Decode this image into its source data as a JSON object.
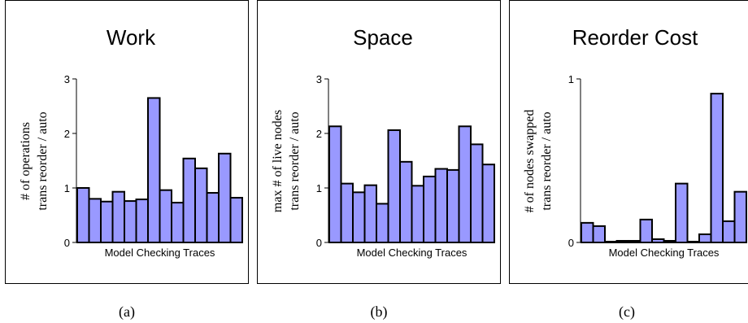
{
  "colors": {
    "bar_fill": "#9999ff",
    "bar_stroke": "#000000",
    "frame": "#000000"
  },
  "captions": [
    "(a)",
    "(b)",
    "(c)"
  ],
  "chart_data": [
    {
      "type": "bar",
      "title": "Work",
      "xlabel": "Model Checking Traces",
      "ylabel": [
        "# of operations",
        "trans reorder / auto"
      ],
      "ylim": [
        0,
        3
      ],
      "yticks": [
        "0",
        "1",
        "2",
        "3"
      ],
      "values": [
        1.0,
        0.8,
        0.75,
        0.93,
        0.76,
        0.79,
        2.65,
        0.96,
        0.73,
        1.54,
        1.36,
        0.91,
        1.63,
        0.82
      ]
    },
    {
      "type": "bar",
      "title": "Space",
      "xlabel": "Model Checking Traces",
      "ylabel": [
        "max # of live nodes",
        "trans reorder / auto"
      ],
      "ylim": [
        0,
        3
      ],
      "yticks": [
        "0",
        "1",
        "2",
        "3"
      ],
      "values": [
        2.13,
        1.08,
        0.92,
        1.05,
        0.71,
        2.06,
        1.48,
        1.04,
        1.21,
        1.35,
        1.33,
        2.13,
        1.8,
        1.43
      ]
    },
    {
      "type": "bar",
      "title": "Reorder Cost",
      "xlabel": "Model Checking Traces",
      "ylabel": [
        "# of nodes swapped",
        "trans reorder / auto"
      ],
      "ylim": [
        0,
        1
      ],
      "yticks": [
        "0",
        "1"
      ],
      "values": [
        0.12,
        0.1,
        0.005,
        0.01,
        0.01,
        0.14,
        0.02,
        0.01,
        0.36,
        0.005,
        0.05,
        0.91,
        0.13,
        0.31
      ]
    }
  ]
}
